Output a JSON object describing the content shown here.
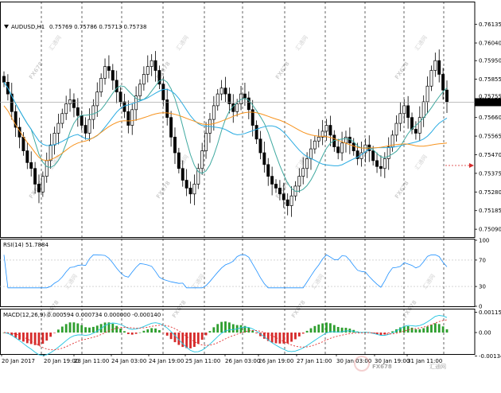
{
  "header": {
    "symbol": "AUDUSD,H1",
    "ohlc": "0.75769 0.75786 0.75713 0.75738"
  },
  "price_axis": {
    "ticks": [
      "0.76135",
      "0.76040",
      "0.75950",
      "0.75855",
      "0.75660",
      "0.75565",
      "0.75470",
      "0.75375",
      "0.75280",
      "0.75185",
      "0.75090"
    ],
    "current_label": "0.75738",
    "hidden_label": "0.75755"
  },
  "rsi": {
    "label": "RSI(14) 51.7884",
    "ticks": [
      "100",
      "70",
      "30",
      "0"
    ]
  },
  "macd": {
    "label": "MACD(12,26,9) 0.000594 0.000734 0.000000 -0.000140",
    "ticks": [
      "0.001155",
      "0.00",
      "-0.00134"
    ]
  },
  "time_axis": {
    "labels": [
      "20 Jan 2017",
      "20 Jan 19:00",
      "23 Jan 11:00",
      "24 Jan 03:00",
      "24 Jan 19:00",
      "25 Jan 11:00",
      "26 Jan 03:00",
      "26 Jan 19:00",
      "27 Jan 11:00",
      "30 Jan 03:00",
      "30 Jan 19:00",
      "31 Jan 11:00"
    ]
  },
  "watermark": {
    "text": "FX678",
    "cn": "汇通网"
  },
  "colors": {
    "candle": "#000000",
    "ma_fast": "#29abe2",
    "ma_mid": "#3fa9a0",
    "ma_slow": "#f7931e",
    "rsi_line": "#1e90ff",
    "macd_up": "#2e9e2e",
    "macd_down": "#d62a2a",
    "signal_line": "#e03030",
    "macd_line": "#22c4e0"
  },
  "chart_data": {
    "type": "candlestick",
    "title": "AUDUSD,H1",
    "ylim": [
      0.7505,
      0.7617
    ],
    "series": [
      {
        "name": "close",
        "values": [
          0.7584,
          0.7578,
          0.7569,
          0.7561,
          0.7556,
          0.7549,
          0.7543,
          0.754,
          0.7532,
          0.7528,
          0.7536,
          0.7544,
          0.7552,
          0.7558,
          0.7563,
          0.7568,
          0.7573,
          0.7575,
          0.7571,
          0.7567,
          0.7562,
          0.7558,
          0.7565,
          0.7572,
          0.7579,
          0.7586,
          0.7592,
          0.759,
          0.7585,
          0.7579,
          0.7574,
          0.7569,
          0.7562,
          0.757,
          0.7577,
          0.7583,
          0.7588,
          0.7592,
          0.7595,
          0.759,
          0.7583,
          0.7575,
          0.7566,
          0.7556,
          0.7548,
          0.754,
          0.7534,
          0.753,
          0.7527,
          0.7532,
          0.754,
          0.7549,
          0.7558,
          0.7565,
          0.7572,
          0.7578,
          0.7581,
          0.7578,
          0.7573,
          0.7569,
          0.7573,
          0.7578,
          0.7576,
          0.757,
          0.7562,
          0.7555,
          0.7548,
          0.7542,
          0.7536,
          0.7532,
          0.753,
          0.7527,
          0.7524,
          0.7521,
          0.7526,
          0.7531,
          0.7536,
          0.754,
          0.7545,
          0.755,
          0.7554,
          0.7556,
          0.7559,
          0.7562,
          0.7557,
          0.7551,
          0.7548,
          0.7553,
          0.7556,
          0.7553,
          0.7549,
          0.7545,
          0.7548,
          0.7552,
          0.7549,
          0.7544,
          0.7541,
          0.754,
          0.7545,
          0.7551,
          0.7557,
          0.7563,
          0.7568,
          0.7572,
          0.7566,
          0.756,
          0.7558,
          0.7566,
          0.7574,
          0.7582,
          0.759,
          0.7595,
          0.7588,
          0.758,
          0.7574
        ]
      }
    ],
    "indicators": [
      "MA fast",
      "MA mid",
      "MA slow",
      "RSI(14)",
      "MACD(12,26,9)"
    ]
  }
}
